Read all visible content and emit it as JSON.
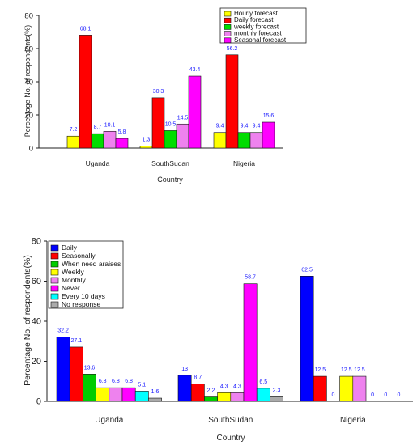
{
  "chart_data": [
    {
      "type": "bar",
      "xlabel": "Country",
      "ylabel": "Percentage No. of respondents(%)",
      "ylim": [
        0,
        80
      ],
      "yticks": [
        0,
        20,
        40,
        60,
        80
      ],
      "categories": [
        "Uganda",
        "SouthSudan",
        "Nigeria"
      ],
      "legend_position": "top-right",
      "series": [
        {
          "name": "Hourly forecast",
          "color": "#ffff00",
          "values": [
            7.2,
            1.3,
            9.4
          ],
          "labels": [
            "7.2",
            "1.3",
            "9.4"
          ]
        },
        {
          "name": "Daily forecast",
          "color": "#ff0000",
          "values": [
            68.1,
            30.3,
            56.2
          ],
          "labels": [
            "68.1",
            "30.3",
            "56.2"
          ]
        },
        {
          "name": "weekly forecast",
          "color": "#00dd00",
          "values": [
            8.7,
            10.5,
            9.4
          ],
          "labels": [
            "8.7",
            "10.5",
            "9.4"
          ]
        },
        {
          "name": "monthly forecast",
          "color": "#ee82ee",
          "values": [
            10.1,
            14.5,
            9.4
          ],
          "labels": [
            "10.1",
            "14.5",
            "9.4"
          ]
        },
        {
          "name": "Seasonal forecast",
          "color": "#ff00ff",
          "values": [
            5.8,
            43.4,
            15.6
          ],
          "labels": [
            "5.8",
            "43.4",
            "15.6"
          ]
        }
      ]
    },
    {
      "type": "bar",
      "xlabel": "Country",
      "ylabel": "Percentage No. of respondents(%)",
      "ylim": [
        0,
        80
      ],
      "yticks": [
        0,
        20,
        40,
        60,
        80
      ],
      "categories": [
        "Uganda",
        "SouthSudan",
        "Nigeria"
      ],
      "legend_position": "top-left",
      "series": [
        {
          "name": "Daily",
          "color": "#0000ff",
          "values": [
            32.2,
            13,
            62.5
          ],
          "labels": [
            "32.2",
            "13",
            "62.5"
          ]
        },
        {
          "name": "Seasonally",
          "color": "#ff0000",
          "values": [
            27.1,
            8.7,
            12.5
          ],
          "labels": [
            "27.1",
            "8.7",
            "12.5"
          ]
        },
        {
          "name": "When need araises",
          "color": "#00cc00",
          "values": [
            13.6,
            2.2,
            0
          ],
          "labels": [
            "13.6",
            "2.2",
            "0"
          ]
        },
        {
          "name": "Weekly",
          "color": "#ffff00",
          "values": [
            6.8,
            4.3,
            12.5
          ],
          "labels": [
            "6.8",
            "4.3",
            "12.5"
          ]
        },
        {
          "name": "Monthly",
          "color": "#ee82ee",
          "values": [
            6.8,
            4.3,
            12.5
          ],
          "labels": [
            "6.8",
            "4.3",
            "12.5"
          ]
        },
        {
          "name": "Never",
          "color": "#ff00ff",
          "values": [
            6.8,
            58.7,
            0
          ],
          "labels": [
            "6.8",
            "58.7",
            "0"
          ]
        },
        {
          "name": "Every 10 days",
          "color": "#00ffff",
          "values": [
            5.1,
            6.5,
            0
          ],
          "labels": [
            "5.1",
            "6.5",
            "0"
          ]
        },
        {
          "name": "No response",
          "color": "#aaaaaa",
          "values": [
            1.6,
            2.3,
            0
          ],
          "labels": [
            "1.6",
            "2.3",
            "0"
          ]
        }
      ]
    }
  ]
}
